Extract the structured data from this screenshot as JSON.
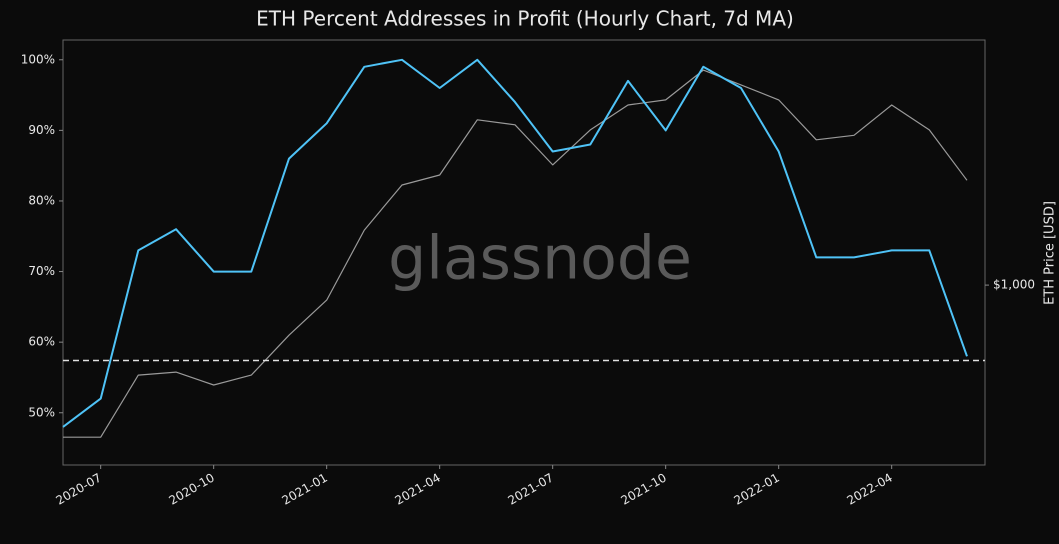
{
  "chart_data": {
    "type": "line",
    "title": "ETH Percent Addresses in Profit (Hourly Chart, 7d MA)",
    "watermark": "glassnode",
    "y2_label": "ETH Price [USD]",
    "x": [
      "2020-06",
      "2020-07",
      "2020-08",
      "2020-09",
      "2020-10",
      "2020-11",
      "2020-12",
      "2021-01",
      "2021-02",
      "2021-03",
      "2021-04",
      "2021-05",
      "2021-06",
      "2021-07",
      "2021-08",
      "2021-09",
      "2021-10",
      "2021-11",
      "2021-12",
      "2022-01",
      "2022-02",
      "2022-03",
      "2022-04",
      "2022-05",
      "2022-06"
    ],
    "xlim": [
      "2020-06",
      "2022-06"
    ],
    "xticks": [
      "2020-07",
      "2020-10",
      "2021-01",
      "2021-04",
      "2021-07",
      "2021-10",
      "2022-01",
      "2022-04"
    ],
    "ylim": [
      42.6,
      102.8
    ],
    "yticks": [
      {
        "value": 50,
        "label": "50%"
      },
      {
        "value": 60,
        "label": "60%"
      },
      {
        "value": 70,
        "label": "70%"
      },
      {
        "value": 80,
        "label": "80%"
      },
      {
        "value": 90,
        "label": "90%"
      },
      {
        "value": 100,
        "label": "100%"
      }
    ],
    "y2lim": [
      282,
      5610
    ],
    "y2scale": "log",
    "y2ticks": [
      {
        "value": 1000,
        "label": "$1,000"
      }
    ],
    "reference_line": 57.4,
    "series": [
      {
        "color": "#4fc3f7",
        "values": [
          48,
          52,
          73,
          76,
          70,
          70,
          86,
          91,
          99,
          100,
          96,
          100,
          94,
          87,
          88,
          97,
          90,
          99,
          96,
          87,
          72,
          72,
          73,
          73,
          58
        ]
      },
      {
        "color": "#9a9a9a",
        "axis": "y2",
        "values": [
          343,
          343,
          531,
          542,
          495,
          531,
          703,
          900,
          1472,
          2022,
          2170,
          3200,
          3090,
          2330,
          2980,
          3550,
          3680,
          4540,
          4090,
          3680,
          2780,
          2870,
          3550,
          2980,
          2090
        ]
      }
    ]
  }
}
